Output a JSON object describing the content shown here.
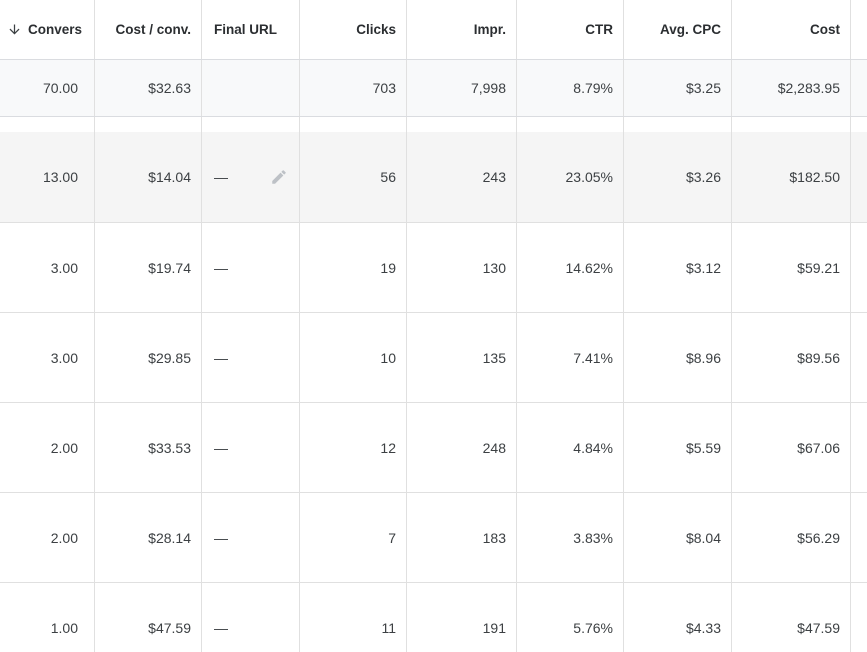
{
  "table": {
    "columns": [
      {
        "key": "conversions",
        "label": "Convers",
        "align": "right",
        "sorted_desc": true
      },
      {
        "key": "cost_per_conv",
        "label": "Cost / conv.",
        "align": "right"
      },
      {
        "key": "final_url",
        "label": "Final URL",
        "align": "left"
      },
      {
        "key": "clicks",
        "label": "Clicks",
        "align": "right"
      },
      {
        "key": "impressions",
        "label": "Impr.",
        "align": "right"
      },
      {
        "key": "ctr",
        "label": "CTR",
        "align": "right"
      },
      {
        "key": "avg_cpc",
        "label": "Avg. CPC",
        "align": "right"
      },
      {
        "key": "cost",
        "label": "Cost",
        "align": "right"
      }
    ],
    "summary_row": {
      "conversions": "70.00",
      "cost_per_conv": "$32.63",
      "final_url": "",
      "clicks": "703",
      "impressions": "7,998",
      "ctr": "8.79%",
      "avg_cpc": "$3.25",
      "cost": "$2,283.95"
    },
    "rows": [
      {
        "conversions": "13.00",
        "cost_per_conv": "$14.04",
        "final_url": "—",
        "clicks": "56",
        "impressions": "243",
        "ctr": "23.05%",
        "avg_cpc": "$3.26",
        "cost": "$182.50",
        "hovered": true,
        "show_edit_icon": true
      },
      {
        "conversions": "3.00",
        "cost_per_conv": "$19.74",
        "final_url": "—",
        "clicks": "19",
        "impressions": "130",
        "ctr": "14.62%",
        "avg_cpc": "$3.12",
        "cost": "$59.21"
      },
      {
        "conversions": "3.00",
        "cost_per_conv": "$29.85",
        "final_url": "—",
        "clicks": "10",
        "impressions": "135",
        "ctr": "7.41%",
        "avg_cpc": "$8.96",
        "cost": "$89.56"
      },
      {
        "conversions": "2.00",
        "cost_per_conv": "$33.53",
        "final_url": "—",
        "clicks": "12",
        "impressions": "248",
        "ctr": "4.84%",
        "avg_cpc": "$5.59",
        "cost": "$67.06"
      },
      {
        "conversions": "2.00",
        "cost_per_conv": "$28.14",
        "final_url": "—",
        "clicks": "7",
        "impressions": "183",
        "ctr": "3.83%",
        "avg_cpc": "$8.04",
        "cost": "$56.29"
      },
      {
        "conversions": "1.00",
        "cost_per_conv": "$47.59",
        "final_url": "—",
        "clicks": "11",
        "impressions": "191",
        "ctr": "5.76%",
        "avg_cpc": "$4.33",
        "cost": "$47.59"
      }
    ],
    "icons": {
      "sort_desc": "arrow-downward-icon",
      "edit": "pencil-icon"
    },
    "colors": {
      "summary_row_bg": "#f8f9fa",
      "hover_row_bg": "#f5f5f5",
      "grid_border": "#e0e0e0",
      "strong_border": "#dadce0",
      "text": "#3c4043",
      "header_text": "#2b2e31",
      "edit_icon_gray": "#bdc1c6"
    }
  }
}
